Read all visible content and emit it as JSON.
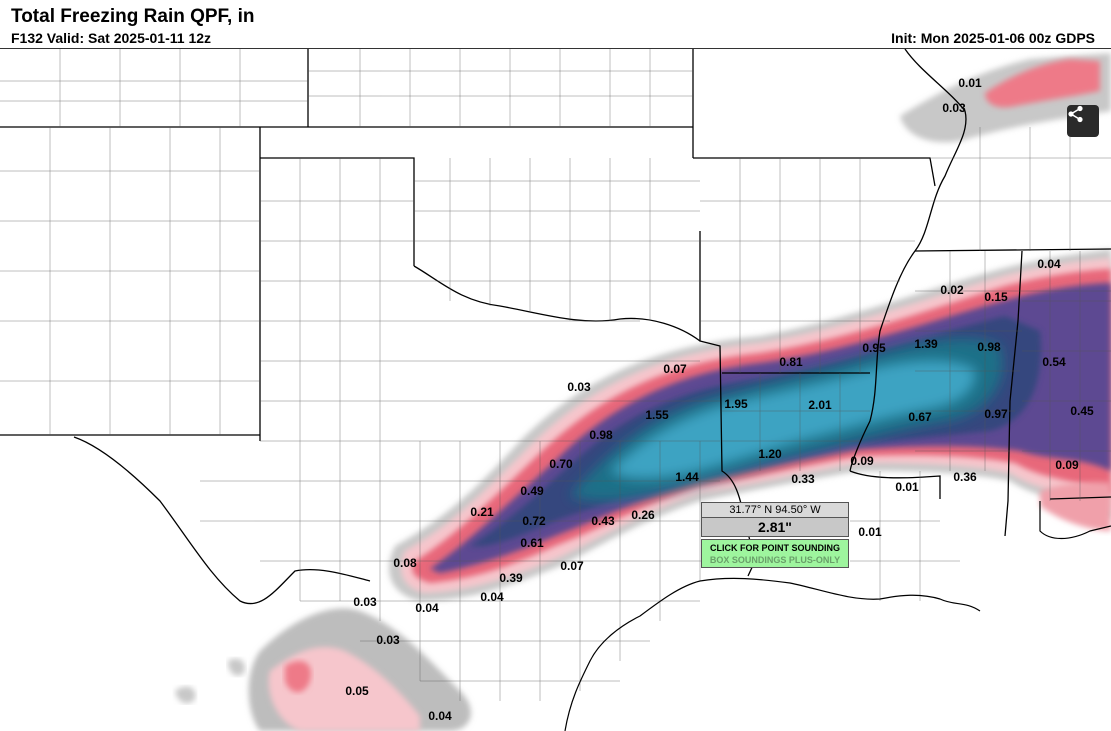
{
  "header": {
    "title": "Total Freezing Rain QPF, in",
    "valid": "F132 Valid: Sat 2025-01-11 12z",
    "init": "Init: Mon 2025-01-06 00z GDPS"
  },
  "popup": {
    "coords": "31.77° N 94.50° W",
    "value": "2.81\"",
    "button_label": "CLICK FOR POINT SOUNDING",
    "button_sub": "BOX SOUNDINGS PLUS-ONLY"
  },
  "icons": {
    "share": "share-icon"
  },
  "colors": {
    "light_pink": "#f6c6cc",
    "pink": "#ee7a88",
    "red": "#e2435b",
    "purple": "#6e4a8e",
    "navy": "#3b3d7e",
    "teal": "#1f6e86",
    "cyan": "#3a9cbc"
  },
  "map_values": [
    "0.01",
    "0.03",
    "0.04",
    "0.02",
    "0.15",
    "1.39",
    "0.98",
    "0.95",
    "0.81",
    "0.07",
    "0.03",
    "1.55",
    "1.95",
    "2.01",
    "0.54",
    "0.45",
    "0.98",
    "1.20",
    "0.67",
    "0.97",
    "0.70",
    "1.44",
    "0.33",
    "0.09",
    "0.36",
    "0.09",
    "0.49",
    "0.01",
    "0.21",
    "0.72",
    "0.43",
    "0.26",
    "0.61",
    "0.01",
    "0.08",
    "0.39",
    "0.07",
    "0.03",
    "0.04",
    "0.04",
    "0.03",
    "0.05",
    "0.04"
  ]
}
